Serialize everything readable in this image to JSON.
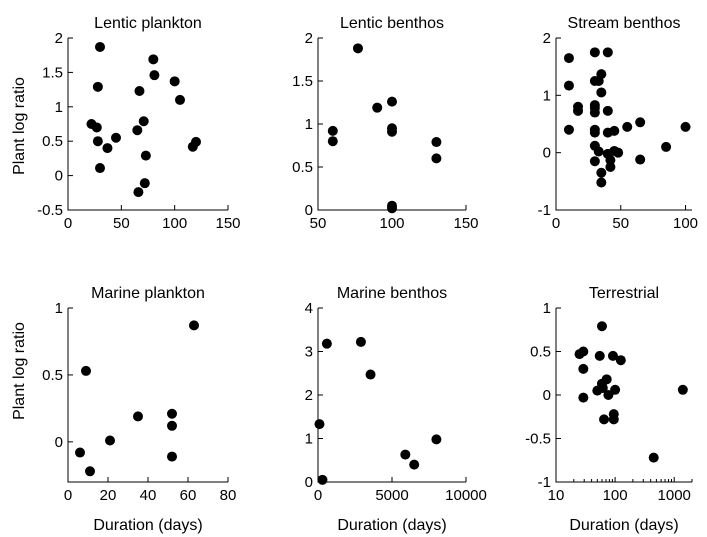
{
  "figure": {
    "ylabel_top": "Plant log ratio",
    "ylabel_bottom": "Plant log ratio",
    "xlabel_bottom": "Duration (days)"
  },
  "chart_data": [
    {
      "type": "scatter",
      "title": "Lentic plankton",
      "xlabel": "",
      "ylabel": "Plant log ratio",
      "xscale": "linear",
      "xlim": [
        0,
        150
      ],
      "ylim": [
        -0.5,
        2
      ],
      "xticks": [
        0,
        50,
        100,
        150
      ],
      "yticks": [
        -0.5,
        0,
        0.5,
        1,
        1.5,
        2
      ],
      "xtick_labels": [
        "0",
        "50",
        "100",
        "150"
      ],
      "ytick_labels": [
        "-0.5",
        "0",
        "0.5",
        "1",
        "1.5",
        "2"
      ],
      "points": [
        [
          30,
          1.87
        ],
        [
          28,
          1.29
        ],
        [
          22,
          0.75
        ],
        [
          27,
          0.7
        ],
        [
          28,
          0.5
        ],
        [
          30,
          0.11
        ],
        [
          37,
          0.4
        ],
        [
          45,
          0.55
        ],
        [
          65,
          0.66
        ],
        [
          67,
          1.23
        ],
        [
          66,
          -0.24
        ],
        [
          71,
          0.79
        ],
        [
          73,
          0.29
        ],
        [
          72,
          -0.11
        ],
        [
          80,
          1.69
        ],
        [
          81,
          1.46
        ],
        [
          100,
          1.37
        ],
        [
          105,
          1.1
        ],
        [
          117,
          0.42
        ],
        [
          120,
          0.49
        ]
      ]
    },
    {
      "type": "scatter",
      "title": "Lentic benthos",
      "xlabel": "",
      "ylabel": "",
      "xscale": "linear",
      "xlim": [
        50,
        150
      ],
      "ylim": [
        0,
        2
      ],
      "xticks": [
        50,
        100,
        150
      ],
      "yticks": [
        0,
        0.5,
        1,
        1.5,
        2
      ],
      "xtick_labels": [
        "50",
        "100",
        "150"
      ],
      "ytick_labels": [
        "0",
        "0.5",
        "1",
        "1.5",
        "2"
      ],
      "points": [
        [
          77,
          1.88
        ],
        [
          60,
          0.92
        ],
        [
          60,
          0.8
        ],
        [
          90,
          1.19
        ],
        [
          100,
          1.26
        ],
        [
          100,
          0.95
        ],
        [
          100,
          0.91
        ],
        [
          100,
          0.05
        ],
        [
          100,
          0.02
        ],
        [
          130,
          0.79
        ],
        [
          130,
          0.6
        ]
      ]
    },
    {
      "type": "scatter",
      "title": "Stream benthos",
      "xlabel": "",
      "ylabel": "",
      "xscale": "linear",
      "xlim": [
        0,
        105
      ],
      "ylim": [
        -1,
        2
      ],
      "xticks": [
        0,
        50,
        100
      ],
      "yticks": [
        -1,
        0,
        1,
        2
      ],
      "xtick_labels": [
        "0",
        "50",
        "100"
      ],
      "ytick_labels": [
        "-1",
        "0",
        "1",
        "2"
      ],
      "points": [
        [
          10,
          1.65
        ],
        [
          10,
          1.17
        ],
        [
          10,
          0.4
        ],
        [
          17,
          0.8
        ],
        [
          17,
          0.73
        ],
        [
          30,
          1.75
        ],
        [
          30,
          1.25
        ],
        [
          30,
          0.83
        ],
        [
          30,
          0.78
        ],
        [
          30,
          0.7
        ],
        [
          30,
          0.4
        ],
        [
          30,
          0.35
        ],
        [
          30,
          0.12
        ],
        [
          30,
          -0.15
        ],
        [
          33,
          1.25
        ],
        [
          33,
          0.02
        ],
        [
          35,
          1.37
        ],
        [
          35,
          1.05
        ],
        [
          35,
          -0.35
        ],
        [
          35,
          -0.52
        ],
        [
          40,
          1.75
        ],
        [
          40,
          0.73
        ],
        [
          40,
          0.35
        ],
        [
          40,
          -0.02
        ],
        [
          42,
          -0.13
        ],
        [
          42,
          -0.25
        ],
        [
          45,
          0.38
        ],
        [
          45,
          0.03
        ],
        [
          48,
          0.0
        ],
        [
          55,
          0.45
        ],
        [
          65,
          0.53
        ],
        [
          65,
          -0.12
        ],
        [
          85,
          0.1
        ],
        [
          100,
          0.45
        ]
      ]
    },
    {
      "type": "scatter",
      "title": "Marine plankton",
      "xlabel": "Duration (days)",
      "ylabel": "Plant log ratio",
      "xscale": "linear",
      "xlim": [
        0,
        80
      ],
      "ylim": [
        -0.3,
        1
      ],
      "xticks": [
        0,
        20,
        40,
        60,
        80
      ],
      "yticks": [
        0,
        0.5,
        1
      ],
      "xtick_labels": [
        "0",
        "20",
        "40",
        "60",
        "80"
      ],
      "ytick_labels": [
        "0",
        "0.5",
        "1"
      ],
      "points": [
        [
          6,
          -0.08
        ],
        [
          9,
          0.53
        ],
        [
          11,
          -0.22
        ],
        [
          21,
          0.01
        ],
        [
          35,
          0.19
        ],
        [
          52,
          0.21
        ],
        [
          52,
          0.12
        ],
        [
          52,
          -0.11
        ],
        [
          63,
          0.87
        ]
      ]
    },
    {
      "type": "scatter",
      "title": "Marine benthos",
      "xlabel": "Duration (days)",
      "ylabel": "",
      "xscale": "linear",
      "xlim": [
        0,
        10000
      ],
      "ylim": [
        0,
        4
      ],
      "xticks": [
        0,
        5000,
        10000
      ],
      "yticks": [
        0,
        1,
        2,
        3,
        4
      ],
      "xtick_labels": [
        "0",
        "5000",
        "10000"
      ],
      "ytick_labels": [
        "0",
        "1",
        "2",
        "3",
        "4"
      ],
      "points": [
        [
          100,
          1.33
        ],
        [
          300,
          0.05
        ],
        [
          600,
          3.18
        ],
        [
          2900,
          3.22
        ],
        [
          3550,
          2.47
        ],
        [
          5900,
          0.63
        ],
        [
          6500,
          0.4
        ],
        [
          8000,
          0.98
        ]
      ]
    },
    {
      "type": "scatter",
      "title": "Terrestrial",
      "xlabel": "Duration (days)",
      "ylabel": "",
      "xscale": "log",
      "xlim": [
        10,
        2000
      ],
      "ylim": [
        -1,
        1
      ],
      "xticks": [
        10,
        100,
        1000
      ],
      "yticks": [
        -1,
        -0.5,
        0,
        0.5,
        1
      ],
      "xtick_labels": [
        "10",
        "100",
        "1000"
      ],
      "ytick_labels": [
        "-1",
        "-0.5",
        "0",
        "0.5",
        "1"
      ],
      "points": [
        [
          25,
          0.47
        ],
        [
          29,
          0.5
        ],
        [
          29,
          0.3
        ],
        [
          29,
          -0.03
        ],
        [
          50,
          0.05
        ],
        [
          55,
          0.45
        ],
        [
          60,
          0.79
        ],
        [
          60,
          0.13
        ],
        [
          62,
          0.08
        ],
        [
          65,
          -0.28
        ],
        [
          72,
          0.18
        ],
        [
          77,
          0.0
        ],
        [
          92,
          0.45
        ],
        [
          95,
          -0.22
        ],
        [
          95,
          -0.28
        ],
        [
          100,
          0.06
        ],
        [
          125,
          0.4
        ],
        [
          450,
          -0.72
        ],
        [
          1400,
          0.06
        ]
      ]
    }
  ]
}
